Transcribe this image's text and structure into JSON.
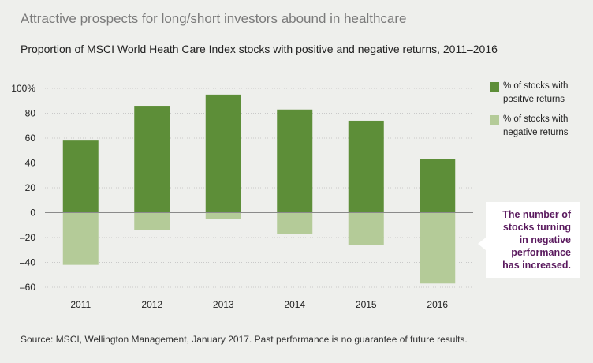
{
  "header": {
    "title": "Attractive prospects for long/short investors abound in healthcare",
    "subtitle": "Proportion of MSCI World Heath Care Index stocks with positive and negative returns, 2011–2016"
  },
  "chart_data": {
    "type": "bar",
    "stacked": true,
    "categories": [
      "2011",
      "2012",
      "2013",
      "2014",
      "2015",
      "2016"
    ],
    "series": [
      {
        "name": "% of stocks with positive returns",
        "values": [
          58,
          86,
          95,
          83,
          74,
          43
        ],
        "color": "#5d8e38"
      },
      {
        "name": "% of stocks with negative returns",
        "values": [
          -42,
          -14,
          -5,
          -17,
          -26,
          -57
        ],
        "color": "#b4cb98"
      }
    ],
    "ylim": [
      -60,
      100
    ],
    "yticks": [
      100,
      80,
      60,
      40,
      20,
      0,
      -20,
      -40,
      -60
    ],
    "ytick_labels": [
      "100%",
      "80",
      "60",
      "40",
      "20",
      "0",
      "–20",
      "–40",
      "–60"
    ],
    "xlabel": "",
    "ylabel": "",
    "grid": true,
    "legend_position": "right"
  },
  "callout": {
    "lines": [
      "The number of",
      "stocks turning",
      "in negative",
      "performance",
      "has increased."
    ],
    "color": "#5a1a5e"
  },
  "source": "Source: MSCI, Wellington Management, January 2017. Past performance is no guarantee of future results."
}
